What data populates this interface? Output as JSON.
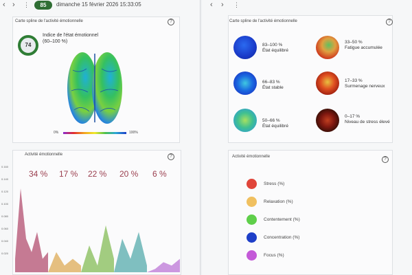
{
  "left": {
    "nav_back": "‹",
    "nav_forward": "›",
    "menu": "⋮",
    "badge": "85",
    "datetime": "dimanche 15 février 2026 15:33:05",
    "spline_card": {
      "title": "Carte spline de l'activité émotionnelle",
      "help": "?",
      "score": "74",
      "index_title": "Indice de l'état émotionnel",
      "index_range": "(60–100 %)",
      "grad_min": "0%",
      "grad_max": "100%"
    },
    "activity_card": {
      "title": "Activité émotionnelle",
      "help": "?",
      "percentages": [
        "34 %",
        "17 %",
        "22 %",
        "20 %",
        "6 %"
      ],
      "yticks": [
        "0.160",
        "0.140",
        "0.120",
        "0.100",
        "0.080",
        "0.060",
        "0.040",
        "0.020"
      ]
    }
  },
  "right": {
    "nav_back": "‹",
    "nav_forward": "›",
    "menu": "⋮",
    "spline_card": {
      "title": "Carte spline de l'activité émotionnelle",
      "help": "?",
      "states": [
        {
          "range": "83–100 %",
          "label": "État équilibré"
        },
        {
          "range": "66–83 %",
          "label": "État stable"
        },
        {
          "range": "50–66 %",
          "label": "État équilibré"
        },
        {
          "range": "33–50 %",
          "label": "Fatigue accumulée"
        },
        {
          "range": "17–33 %",
          "label": "Surmenage nerveux"
        },
        {
          "range": "0–17 %",
          "label": "Niveau de stress élevé"
        }
      ]
    },
    "activity_card": {
      "title": "Activité émotionnelle",
      "help": "?",
      "legend": [
        {
          "label": "Stress (%)",
          "color": "#e0453a"
        },
        {
          "label": "Relaxation (%)",
          "color": "#f0c060"
        },
        {
          "label": "Contentement (%)",
          "color": "#5fcf4a"
        },
        {
          "label": "Concentration (%)",
          "color": "#1e3fc8"
        },
        {
          "label": "Focus (%)",
          "color": "#c45ad8"
        }
      ]
    }
  },
  "chart_data": {
    "type": "area",
    "ylim": [
      0,
      0.16
    ],
    "series": [
      {
        "color": "#b85a78",
        "values": [
          0.02,
          0.125,
          0.05,
          0.03,
          0.06,
          0.02,
          0.03
        ]
      },
      {
        "color": "#e0b060",
        "values": [
          0.0,
          0.03,
          0.01,
          0.02,
          0.01
        ]
      },
      {
        "color": "#8cc060",
        "values": [
          0.0,
          0.04,
          0.01,
          0.07,
          0.02
        ]
      },
      {
        "color": "#60b0b0",
        "values": [
          0.0,
          0.05,
          0.02,
          0.06,
          0.01
        ]
      },
      {
        "color": "#c080d8",
        "values": [
          0.0,
          0.005,
          0.015,
          0.01,
          0.02
        ]
      }
    ]
  }
}
